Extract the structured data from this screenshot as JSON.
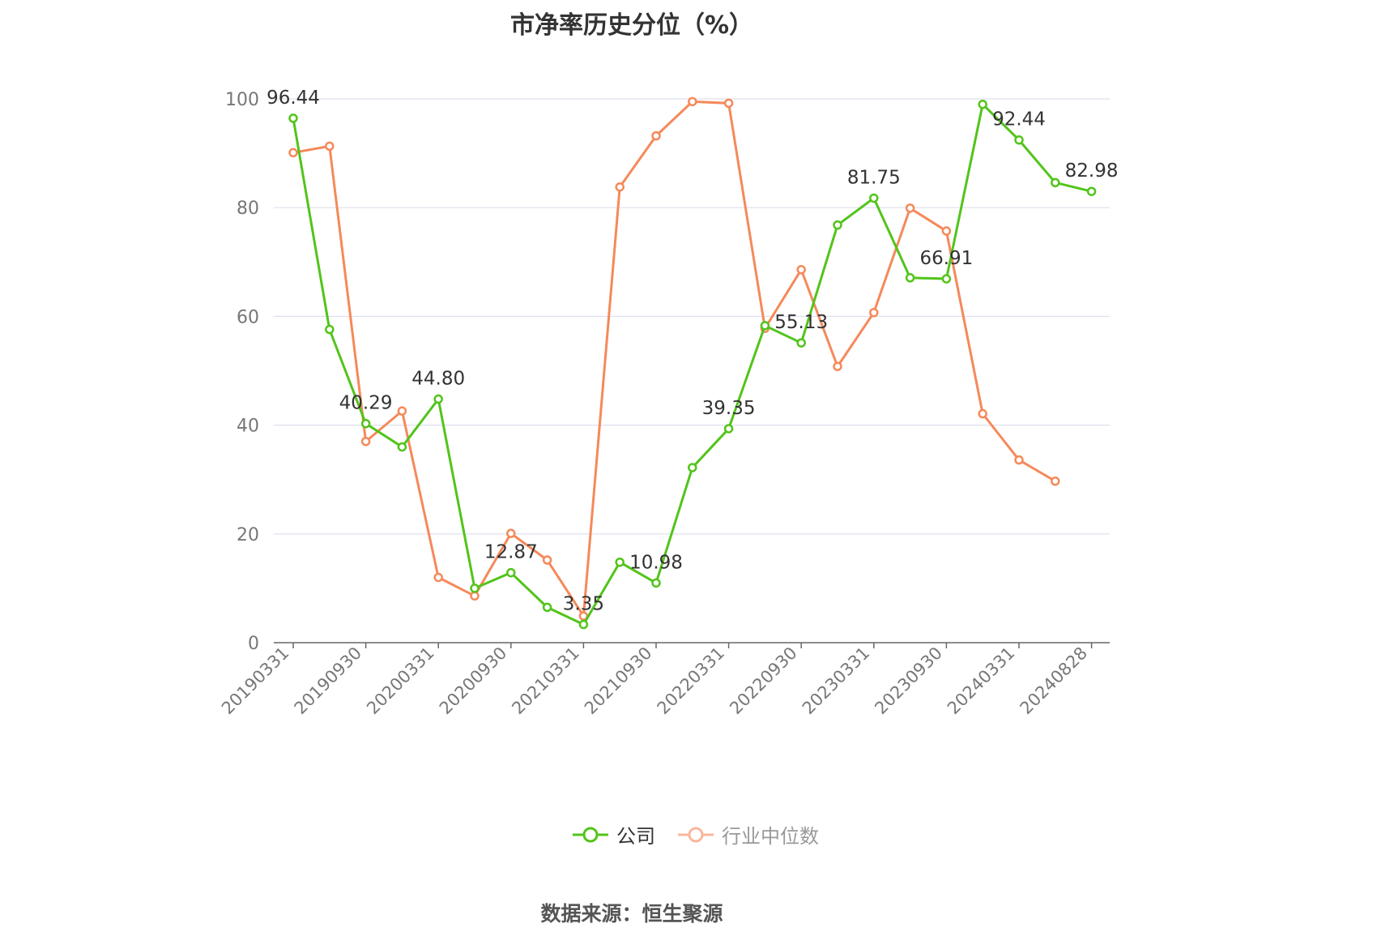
{
  "title": "市净率历史分位（%）",
  "source": "数据来源：恒生聚源",
  "colors": {
    "company": "#52c41a",
    "industry": "#f5895a",
    "industry_legend": "#f9b79b",
    "grid": "#dde1ee",
    "axis": "#666666"
  },
  "chart_data": {
    "type": "line",
    "title": "市净率历史分位（%）",
    "ylim": [
      0,
      100
    ],
    "yticks": [
      0,
      20,
      40,
      60,
      80,
      100
    ],
    "grid": true,
    "legend_position": "bottom",
    "x_tick_labels": [
      "20190331",
      "20190930",
      "20200331",
      "20200930",
      "20210331",
      "20210930",
      "20220331",
      "20220930",
      "20230331",
      "20230930",
      "20240331",
      "20240828"
    ],
    "x": [
      "20190331",
      "20190630",
      "20190930",
      "20191231",
      "20200331",
      "20200630",
      "20200930",
      "20201231",
      "20210331",
      "20210630",
      "20210930",
      "20211231",
      "20220331",
      "20220630",
      "20220930",
      "20221231",
      "20230331",
      "20230630",
      "20230930",
      "20231231",
      "20240331",
      "20240630",
      "20240828"
    ],
    "series": [
      {
        "name": "公司",
        "color": "#52c41a",
        "values": [
          96.44,
          57.6,
          40.29,
          36.0,
          44.8,
          10.0,
          12.87,
          6.5,
          3.35,
          14.8,
          10.98,
          32.2,
          39.35,
          58.3,
          55.13,
          76.8,
          81.75,
          67.1,
          66.91,
          99.0,
          92.44,
          84.6,
          82.98
        ],
        "labels": [
          "96.44",
          null,
          "40.29",
          null,
          "44.80",
          null,
          "12.87",
          null,
          "3.35",
          null,
          "10.98",
          null,
          "39.35",
          null,
          "55.13",
          null,
          "81.75",
          null,
          "66.91",
          null,
          "92.44",
          null,
          "82.98"
        ]
      },
      {
        "name": "行业中位数",
        "color": "#f5895a",
        "values": [
          90.1,
          91.3,
          37.0,
          42.6,
          12.0,
          8.6,
          20.1,
          15.2,
          4.9,
          83.8,
          93.2,
          99.5,
          99.2,
          57.8,
          68.6,
          50.8,
          60.7,
          79.9,
          75.7,
          42.1,
          33.6,
          29.7,
          null
        ]
      }
    ]
  }
}
